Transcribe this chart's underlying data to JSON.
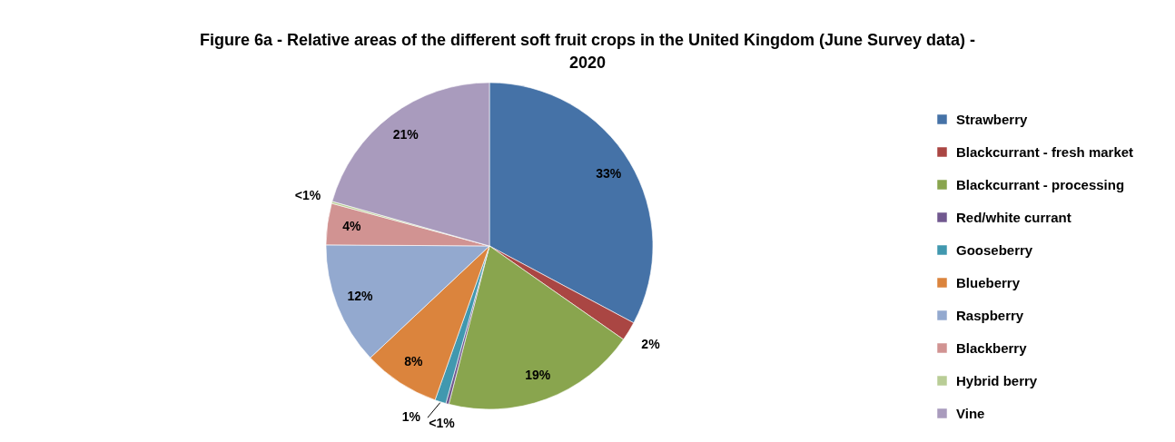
{
  "chart_data": {
    "type": "pie",
    "title": "Figure 6a - Relative areas of the different soft fruit crops in the United Kingdom (June Survey data) - 2020",
    "categories": [
      "Strawberry",
      "Blackcurrant - fresh market",
      "Blackcurrant - processing",
      "Red/white currant",
      "Gooseberry",
      "Blueberry",
      "Raspberry",
      "Blackberry",
      "Hybrid berry",
      "Vine"
    ],
    "values": [
      32.8,
      1.9,
      19.3,
      0.3,
      1.1,
      7.6,
      12.1,
      4.1,
      0.2,
      20.6
    ],
    "colors": [
      "#4572a7",
      "#aa4643",
      "#89a54e",
      "#71588f",
      "#4198af",
      "#db843d",
      "#93a9cf",
      "#d19392",
      "#b9cd96",
      "#a99bbd"
    ],
    "value_labels": [
      "33%",
      "2%",
      "19%",
      "<1%",
      "1%",
      "8%",
      "12%",
      "4%",
      "<1%",
      "21%"
    ],
    "legend": "right"
  }
}
